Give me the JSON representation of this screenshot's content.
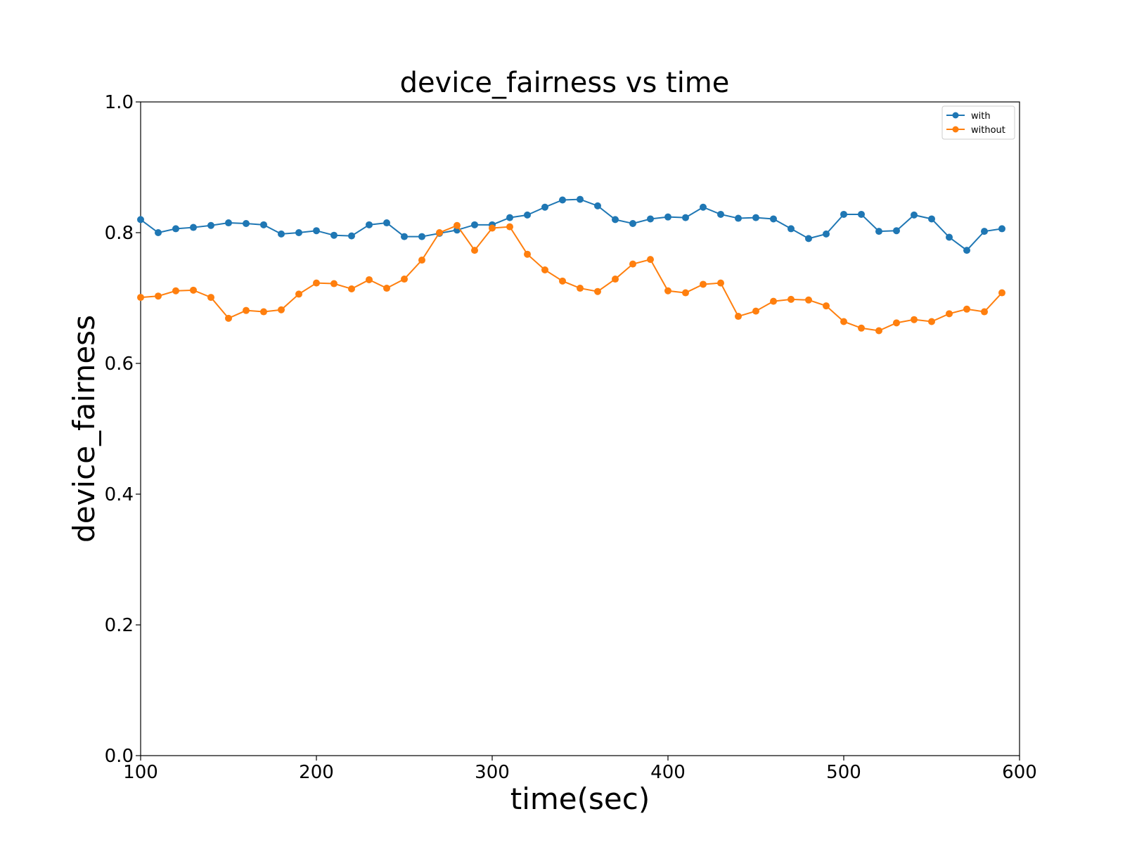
{
  "chart_data": {
    "type": "line",
    "title": "device_fairness vs time",
    "xlabel": "time(sec)",
    "ylabel": "device_fairness",
    "xlim": [
      100,
      600
    ],
    "ylim": [
      0.0,
      1.0
    ],
    "xticks": [
      100,
      200,
      300,
      400,
      500,
      600
    ],
    "yticks": [
      0.0,
      0.2,
      0.4,
      0.6,
      0.8,
      1.0
    ],
    "xtick_labels": [
      "100",
      "200",
      "300",
      "400",
      "500",
      "600"
    ],
    "ytick_labels": [
      "0.0",
      "0.2",
      "0.4",
      "0.6",
      "0.8",
      "1.0"
    ],
    "grid": false,
    "legend_position": "top-right",
    "x": [
      100,
      110,
      120,
      130,
      140,
      150,
      160,
      170,
      180,
      190,
      200,
      210,
      220,
      230,
      240,
      250,
      260,
      270,
      280,
      290,
      300,
      310,
      320,
      330,
      340,
      350,
      360,
      370,
      380,
      390,
      400,
      410,
      420,
      430,
      440,
      450,
      460,
      470,
      480,
      490,
      500,
      510,
      520,
      530,
      540,
      550,
      560,
      570,
      580,
      590
    ],
    "series": [
      {
        "name": "with",
        "color": "#1f77b4",
        "marker": "circle",
        "values": [
          0.82,
          0.8,
          0.806,
          0.808,
          0.811,
          0.815,
          0.814,
          0.812,
          0.798,
          0.8,
          0.803,
          0.796,
          0.795,
          0.812,
          0.815,
          0.794,
          0.794,
          0.799,
          0.804,
          0.812,
          0.812,
          0.823,
          0.827,
          0.839,
          0.85,
          0.851,
          0.841,
          0.82,
          0.814,
          0.821,
          0.824,
          0.823,
          0.839,
          0.828,
          0.822,
          0.823,
          0.821,
          0.806,
          0.791,
          0.798,
          0.828,
          0.828,
          0.802,
          0.803,
          0.827,
          0.821,
          0.793,
          0.773,
          0.802,
          0.806
        ]
      },
      {
        "name": "without",
        "color": "#ff7f0e",
        "marker": "circle",
        "values": [
          0.701,
          0.703,
          0.711,
          0.712,
          0.701,
          0.669,
          0.681,
          0.679,
          0.682,
          0.706,
          0.723,
          0.722,
          0.714,
          0.728,
          0.715,
          0.729,
          0.758,
          0.8,
          0.811,
          0.773,
          0.807,
          0.809,
          0.767,
          0.743,
          0.726,
          0.715,
          0.71,
          0.729,
          0.752,
          0.759,
          0.711,
          0.708,
          0.721,
          0.723,
          0.672,
          0.68,
          0.695,
          0.698,
          0.697,
          0.688,
          0.664,
          0.654,
          0.65,
          0.662,
          0.667,
          0.664,
          0.676,
          0.683,
          0.679,
          0.708
        ]
      }
    ]
  }
}
